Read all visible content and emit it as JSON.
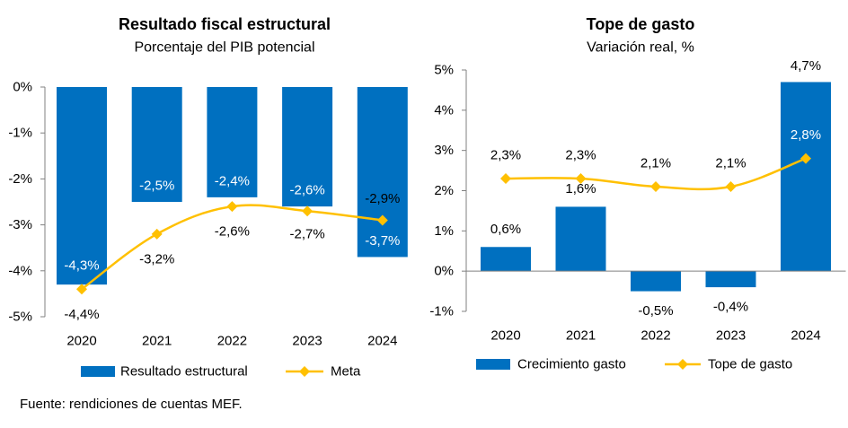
{
  "source_note": "Fuente: rendiciones de cuentas MEF.",
  "colors": {
    "bar": "#0070C0",
    "line": "#FFC000",
    "axis": "#808080"
  },
  "chart_data": [
    {
      "type": "bar",
      "title": "Resultado fiscal estructural",
      "subtitle": "Porcentaje del PIB potencial",
      "categories": [
        "2020",
        "2021",
        "2022",
        "2023",
        "2024"
      ],
      "ylim": [
        -5,
        0
      ],
      "yticks": [
        0,
        -1,
        -2,
        -3,
        -4,
        -5
      ],
      "ytick_labels": [
        "0%",
        "-1%",
        "-2%",
        "-3%",
        "-4%",
        "-5%"
      ],
      "grid": false,
      "legend_position": "bottom",
      "series": [
        {
          "name": "Resultado estructural",
          "kind": "bar",
          "values": [
            -4.3,
            -2.5,
            -2.4,
            -2.6,
            -3.7
          ],
          "labels": [
            "-4,3%",
            "-2,5%",
            "-2,4%",
            "-2,6%",
            "-3,7%"
          ]
        },
        {
          "name": "Meta",
          "kind": "line",
          "values": [
            -4.4,
            -3.2,
            -2.6,
            -2.7,
            -2.9
          ],
          "labels": [
            "-4,4%",
            "-3,2%",
            "-2,6%",
            "-2,7%",
            "-2,9%"
          ]
        }
      ]
    },
    {
      "type": "bar",
      "title": "Tope de gasto",
      "subtitle": "Variación real, %",
      "categories": [
        "2020",
        "2021",
        "2022",
        "2023",
        "2024"
      ],
      "ylim": [
        -1,
        5
      ],
      "yticks": [
        5,
        4,
        3,
        2,
        1,
        0,
        -1
      ],
      "ytick_labels": [
        "5%",
        "4%",
        "3%",
        "2%",
        "1%",
        "0%",
        "-1%"
      ],
      "grid": false,
      "legend_position": "bottom",
      "series": [
        {
          "name": "Crecimiento gasto",
          "kind": "bar",
          "values": [
            0.6,
            1.6,
            -0.5,
            -0.4,
            4.7
          ],
          "labels": [
            "0,6%",
            "1,6%",
            "-0,5%",
            "-0,4%",
            "4,7%"
          ]
        },
        {
          "name": "Tope de gasto",
          "kind": "line",
          "values": [
            2.3,
            2.3,
            2.1,
            2.1,
            2.8
          ],
          "labels": [
            "2,3%",
            "2,3%",
            "2,1%",
            "2,1%",
            "2,8%"
          ]
        }
      ]
    }
  ]
}
